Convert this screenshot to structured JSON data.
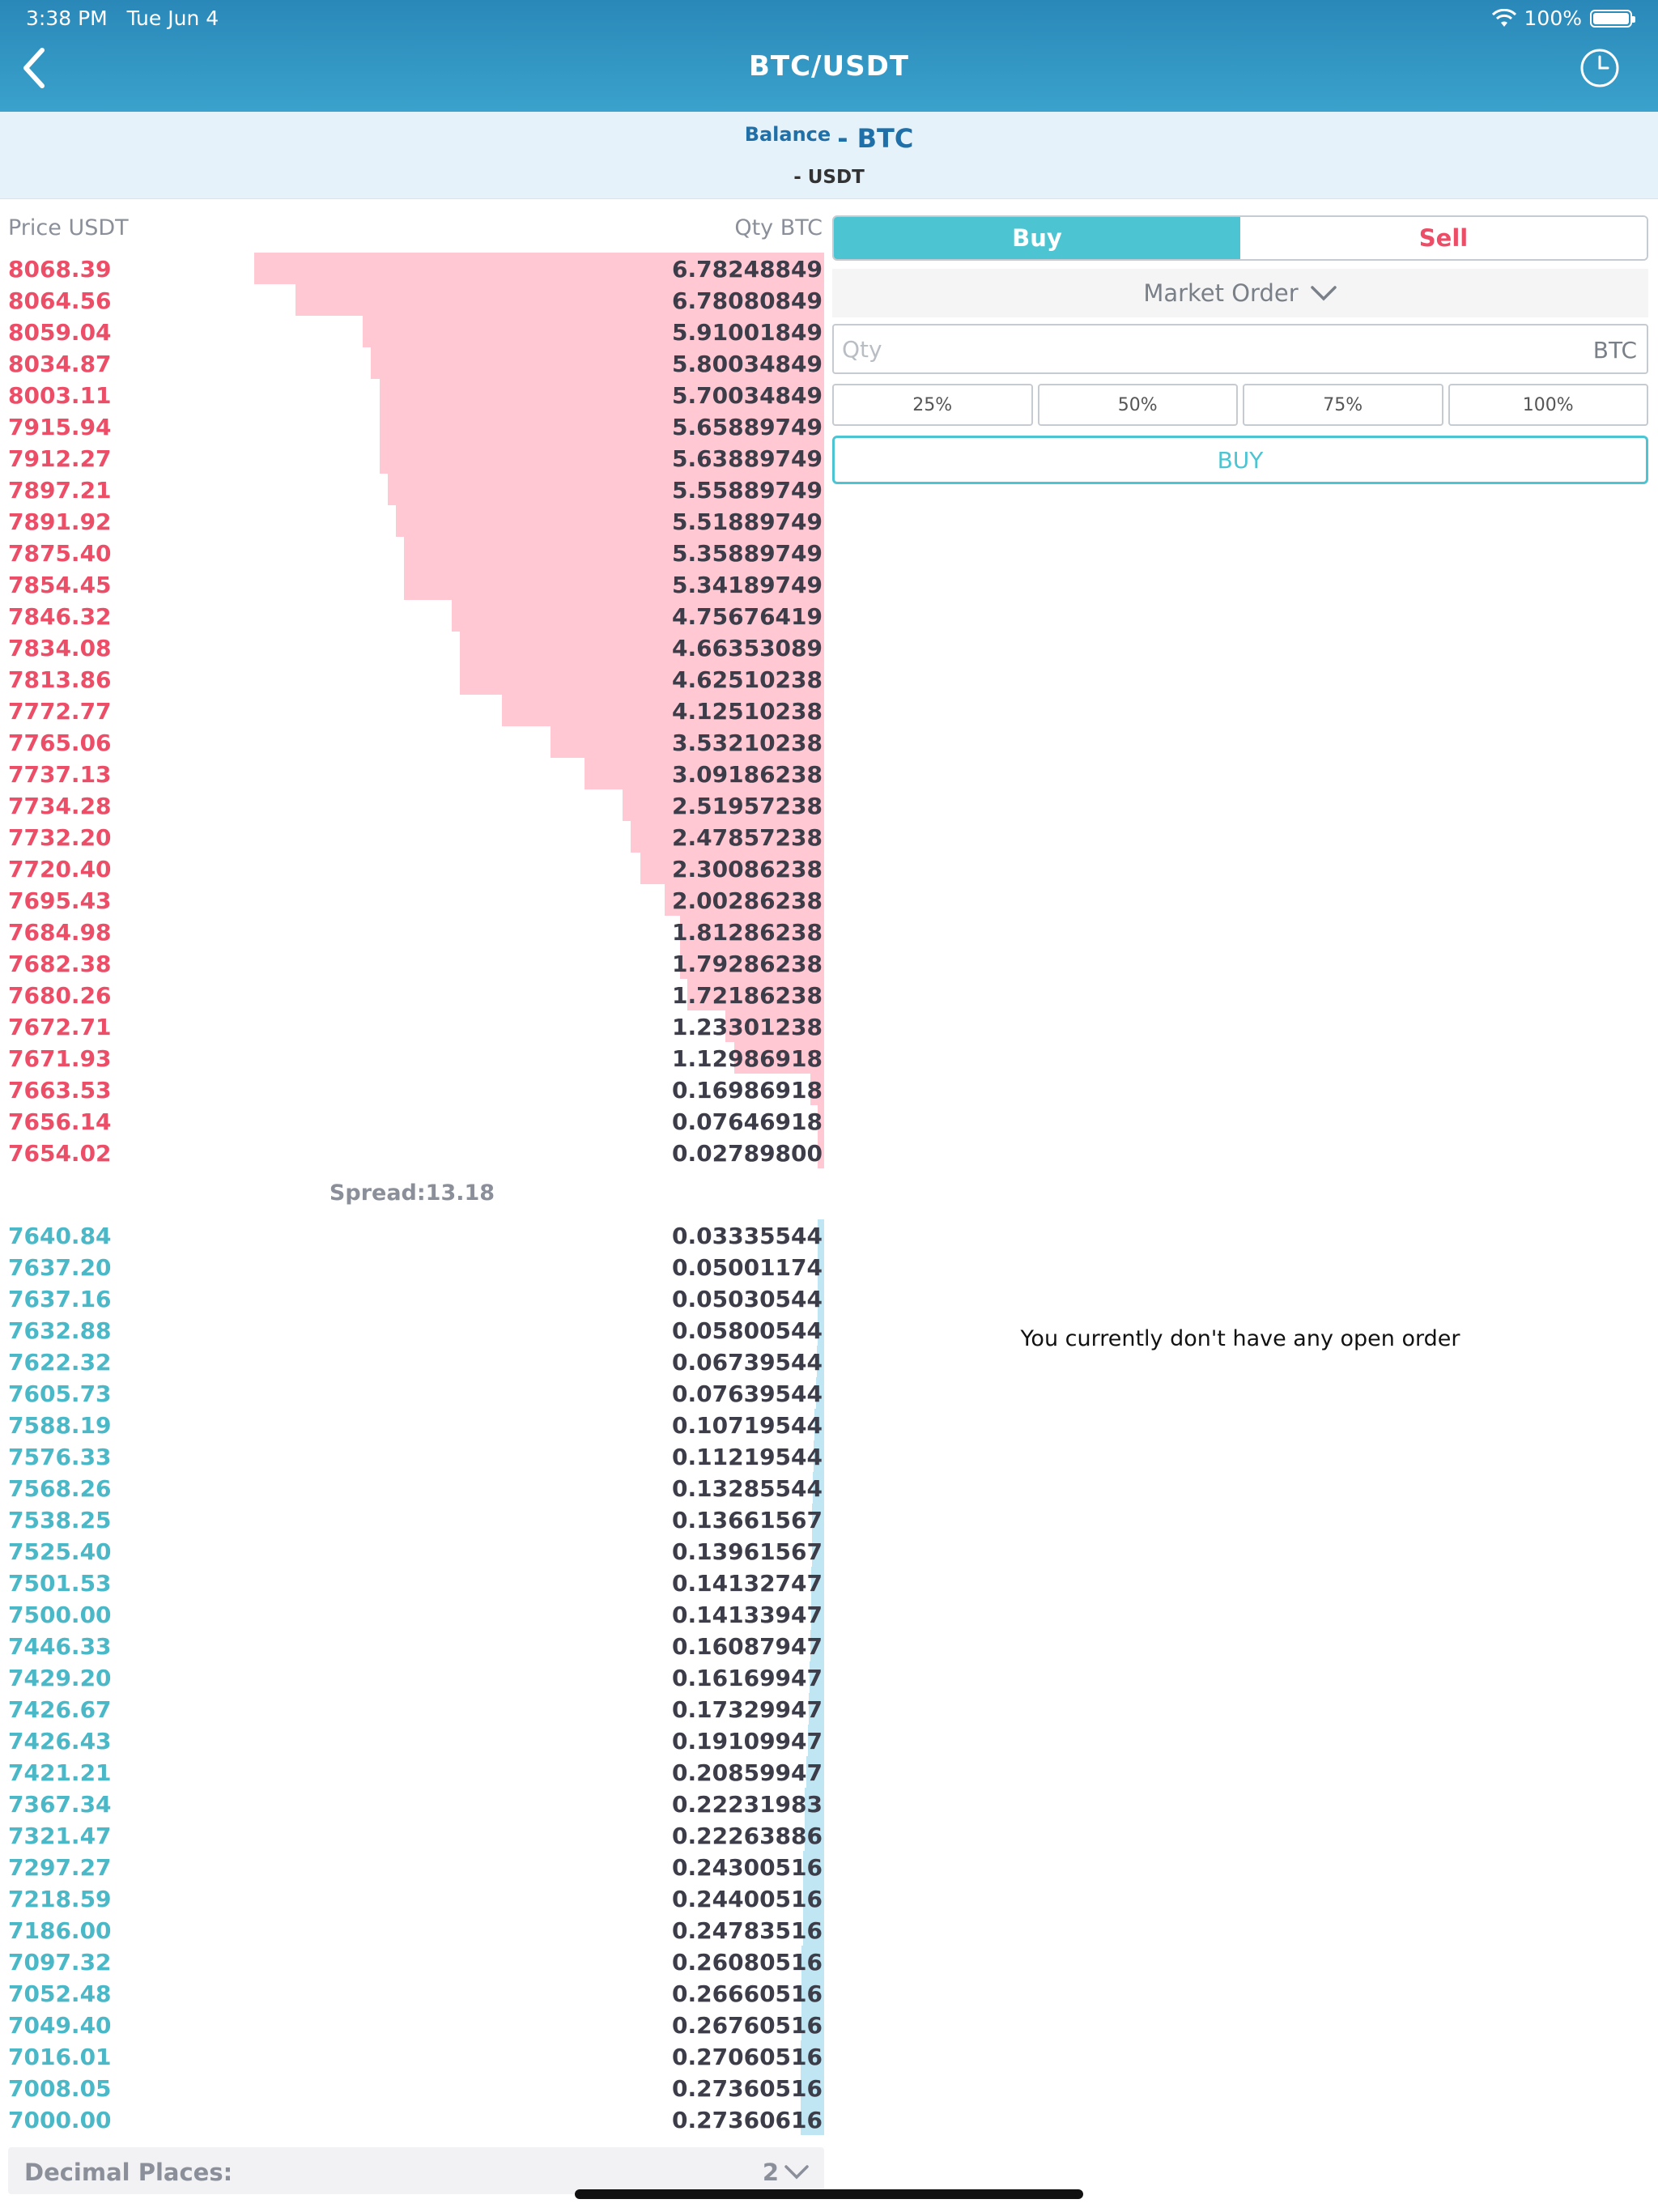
{
  "status": {
    "time": "3:38 PM",
    "date": "Tue Jun 4",
    "battery": "100%"
  },
  "nav": {
    "title": "BTC/USDT"
  },
  "balance": {
    "label": "Balance",
    "btc": "- BTC",
    "usdt": "- USDT"
  },
  "orderbook": {
    "price_header": "Price USDT",
    "qty_header": "Qty BTC",
    "asks": [
      {
        "price": "8068.39",
        "qty": "6.78248849",
        "depth": 0.6928
      },
      {
        "price": "8064.56",
        "qty": "6.78080849",
        "depth": 0.6426
      },
      {
        "price": "8059.04",
        "qty": "5.91001849",
        "depth": 0.5608
      },
      {
        "price": "8034.87",
        "qty": "5.80034849",
        "depth": 0.5508
      },
      {
        "price": "8003.11",
        "qty": "5.70034849",
        "depth": 0.5408
      },
      {
        "price": "7915.94",
        "qty": "5.65889749",
        "depth": 0.5408
      },
      {
        "price": "7912.27",
        "qty": "5.63889749",
        "depth": 0.5408
      },
      {
        "price": "7897.21",
        "qty": "5.55889749",
        "depth": 0.5309
      },
      {
        "price": "7891.92",
        "qty": "5.51889749",
        "depth": 0.5211
      },
      {
        "price": "7875.40",
        "qty": "5.35889749",
        "depth": 0.5112
      },
      {
        "price": "7854.45",
        "qty": "5.34189749",
        "depth": 0.5112
      },
      {
        "price": "7846.32",
        "qty": "4.75676419",
        "depth": 0.4524
      },
      {
        "price": "7834.08",
        "qty": "4.66353089",
        "depth": 0.4425
      },
      {
        "price": "7813.86",
        "qty": "4.62510238",
        "depth": 0.4425
      },
      {
        "price": "7772.77",
        "qty": "4.12510238",
        "depth": 0.3917
      },
      {
        "price": "7765.06",
        "qty": "3.53210238",
        "depth": 0.333
      },
      {
        "price": "7737.13",
        "qty": "3.09186238",
        "depth": 0.2918
      },
      {
        "price": "7734.28",
        "qty": "2.51957238",
        "depth": 0.2446
      },
      {
        "price": "7732.20",
        "qty": "2.47857238",
        "depth": 0.2348
      },
      {
        "price": "7720.40",
        "qty": "2.30086238",
        "depth": 0.223
      },
      {
        "price": "7695.43",
        "qty": "2.00286238",
        "depth": 0.1937
      },
      {
        "price": "7684.98",
        "qty": "1.81286238",
        "depth": 0.1751
      },
      {
        "price": "7682.38",
        "qty": "1.79286238",
        "depth": 0.1751
      },
      {
        "price": "7680.26",
        "qty": "1.72186238",
        "depth": 0.1664
      },
      {
        "price": "7672.71",
        "qty": "1.23301238",
        "depth": 0.1202
      },
      {
        "price": "7671.93",
        "qty": "1.12986918",
        "depth": 0.1093
      },
      {
        "price": "7663.53",
        "qty": "0.16986918",
        "depth": 0.0167
      },
      {
        "price": "7656.14",
        "qty": "0.07646918",
        "depth": 0.0079
      },
      {
        "price": "7654.02",
        "qty": "0.02789800",
        "depth": 0.003
      }
    ],
    "spread": "Spread:13.18",
    "bids": [
      {
        "price": "7640.84",
        "qty": "0.03335544",
        "depth": 0.0049
      },
      {
        "price": "7637.20",
        "qty": "0.05001174",
        "depth": 0.0069
      },
      {
        "price": "7637.16",
        "qty": "0.05030544",
        "depth": 0.0069
      },
      {
        "price": "7632.88",
        "qty": "0.05800544",
        "depth": 0.0079
      },
      {
        "price": "7622.32",
        "qty": "0.06739544",
        "depth": 0.0089
      },
      {
        "price": "7605.73",
        "qty": "0.07639544",
        "depth": 0.0098
      },
      {
        "price": "7588.19",
        "qty": "0.10719544",
        "depth": 0.0118
      },
      {
        "price": "7576.33",
        "qty": "0.11219544",
        "depth": 0.0128
      },
      {
        "price": "7568.26",
        "qty": "0.13285544",
        "depth": 0.0138
      },
      {
        "price": "7538.25",
        "qty": "0.13661567",
        "depth": 0.0148
      },
      {
        "price": "7525.40",
        "qty": "0.13961567",
        "depth": 0.0148
      },
      {
        "price": "7501.53",
        "qty": "0.14132747",
        "depth": 0.0157
      },
      {
        "price": "7500.00",
        "qty": "0.14133947",
        "depth": 0.0157
      },
      {
        "price": "7446.33",
        "qty": "0.16087947",
        "depth": 0.0167
      },
      {
        "price": "7429.20",
        "qty": "0.16169947",
        "depth": 0.0177
      },
      {
        "price": "7426.67",
        "qty": "0.17329947",
        "depth": 0.0187
      },
      {
        "price": "7426.43",
        "qty": "0.19109947",
        "depth": 0.0197
      },
      {
        "price": "7421.21",
        "qty": "0.20859947",
        "depth": 0.0216
      },
      {
        "price": "7367.34",
        "qty": "0.22231983",
        "depth": 0.0236
      },
      {
        "price": "7321.47",
        "qty": "0.22263886",
        "depth": 0.0236
      },
      {
        "price": "7297.27",
        "qty": "0.24300516",
        "depth": 0.0256
      },
      {
        "price": "7218.59",
        "qty": "0.24400516",
        "depth": 0.0256
      },
      {
        "price": "7186.00",
        "qty": "0.24783516",
        "depth": 0.0256
      },
      {
        "price": "7097.32",
        "qty": "0.26080516",
        "depth": 0.0275
      },
      {
        "price": "7052.48",
        "qty": "0.26660516",
        "depth": 0.0275
      },
      {
        "price": "7049.40",
        "qty": "0.26760516",
        "depth": 0.0275
      },
      {
        "price": "7016.01",
        "qty": "0.27060516",
        "depth": 0.0285
      },
      {
        "price": "7008.05",
        "qty": "0.27360516",
        "depth": 0.0285
      },
      {
        "price": "7000.00",
        "qty": "0.27360616",
        "depth": 0.0285
      }
    ],
    "decimal_label": "Decimal Places:",
    "decimal_value": "2"
  },
  "trade": {
    "buy_tab": "Buy",
    "sell_tab": "Sell",
    "order_type": "Market Order",
    "qty_placeholder": "Qty",
    "qty_unit": "BTC",
    "percents": [
      "25%",
      "50%",
      "75%",
      "100%"
    ],
    "action": "BUY"
  },
  "orders": {
    "empty_message": "You currently don't have any open order"
  },
  "colors": {
    "ask": "#ec4e68",
    "bid": "#4bb8c8",
    "accent": "#4dc4d2",
    "nav": "#2a88b8"
  }
}
